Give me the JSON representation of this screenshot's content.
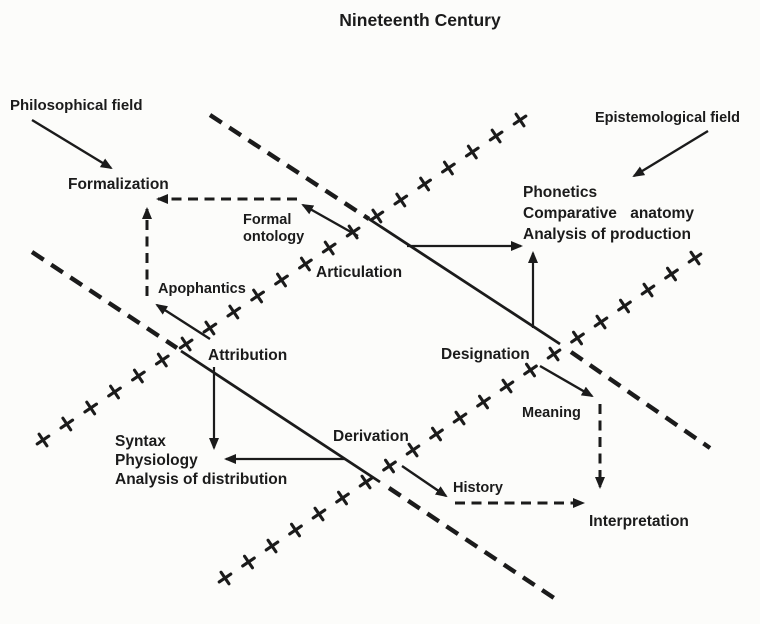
{
  "title": "Nineteenth Century",
  "fields": {
    "philosophical": "Philosophical field",
    "epistemological": "Epistemological field"
  },
  "nodes": {
    "formalization": "Formalization",
    "formal_ontology_line1": "Formal",
    "formal_ontology_line2": "ontology",
    "apophantics": "Apophantics",
    "articulation": "Articulation",
    "attribution": "Attribution",
    "designation": "Designation",
    "derivation": "Derivation",
    "meaning": "Meaning",
    "history": "History",
    "interpretation": "Interpretation"
  },
  "science_blocks": {
    "epistemological": [
      "Phonetics",
      "Comparative anatomy",
      "Analysis of production"
    ],
    "philosophical": [
      "Syntax",
      "Physiology",
      "Analysis of distribution"
    ]
  },
  "colors": {
    "ink": "#1b1b1b",
    "paper": "#fcfcfa"
  }
}
